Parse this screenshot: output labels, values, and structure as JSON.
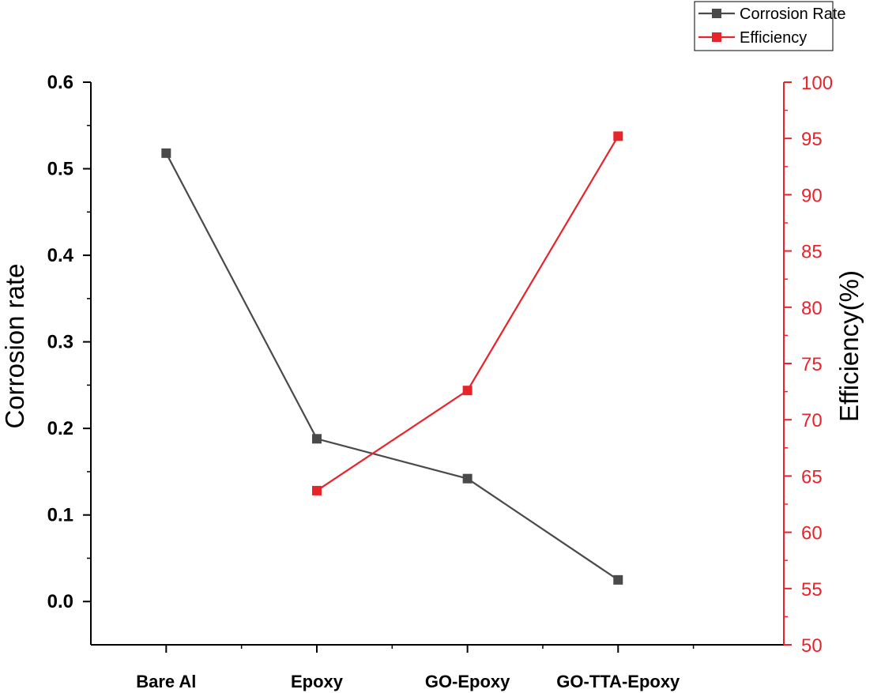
{
  "chart_data": {
    "type": "line",
    "categories": [
      "Bare Al",
      "Epoxy",
      "GO-Epoxy",
      "GO-TTA-Epoxy"
    ],
    "series": [
      {
        "name": "Corrosion Rate",
        "axis": "left",
        "color": "#4a4a4a",
        "values": [
          0.518,
          0.188,
          0.142,
          0.025
        ]
      },
      {
        "name": "Efficiency",
        "axis": "right",
        "color": "#e8242b",
        "values": [
          null,
          63.7,
          72.6,
          95.2
        ]
      }
    ],
    "ylabel": "Corrosion rate",
    "y2label": "Efficiency(%)",
    "ylim": [
      -0.05,
      0.6
    ],
    "y2lim": [
      50,
      100
    ],
    "yticks": [
      0.0,
      0.1,
      0.2,
      0.3,
      0.4,
      0.5,
      0.6
    ],
    "yticklabels": [
      "0.0",
      "0.1",
      "0.2",
      "0.3",
      "0.4",
      "0.5",
      "0.6"
    ],
    "y2ticks": [
      50,
      55,
      60,
      65,
      70,
      75,
      80,
      85,
      90,
      95,
      100
    ],
    "y2ticklabels": [
      "50",
      "55",
      "60",
      "65",
      "70",
      "75",
      "80",
      "85",
      "90",
      "95",
      "100"
    ],
    "grid": false,
    "legend_position": "top-right",
    "right_axis_color": "#e8242b"
  }
}
